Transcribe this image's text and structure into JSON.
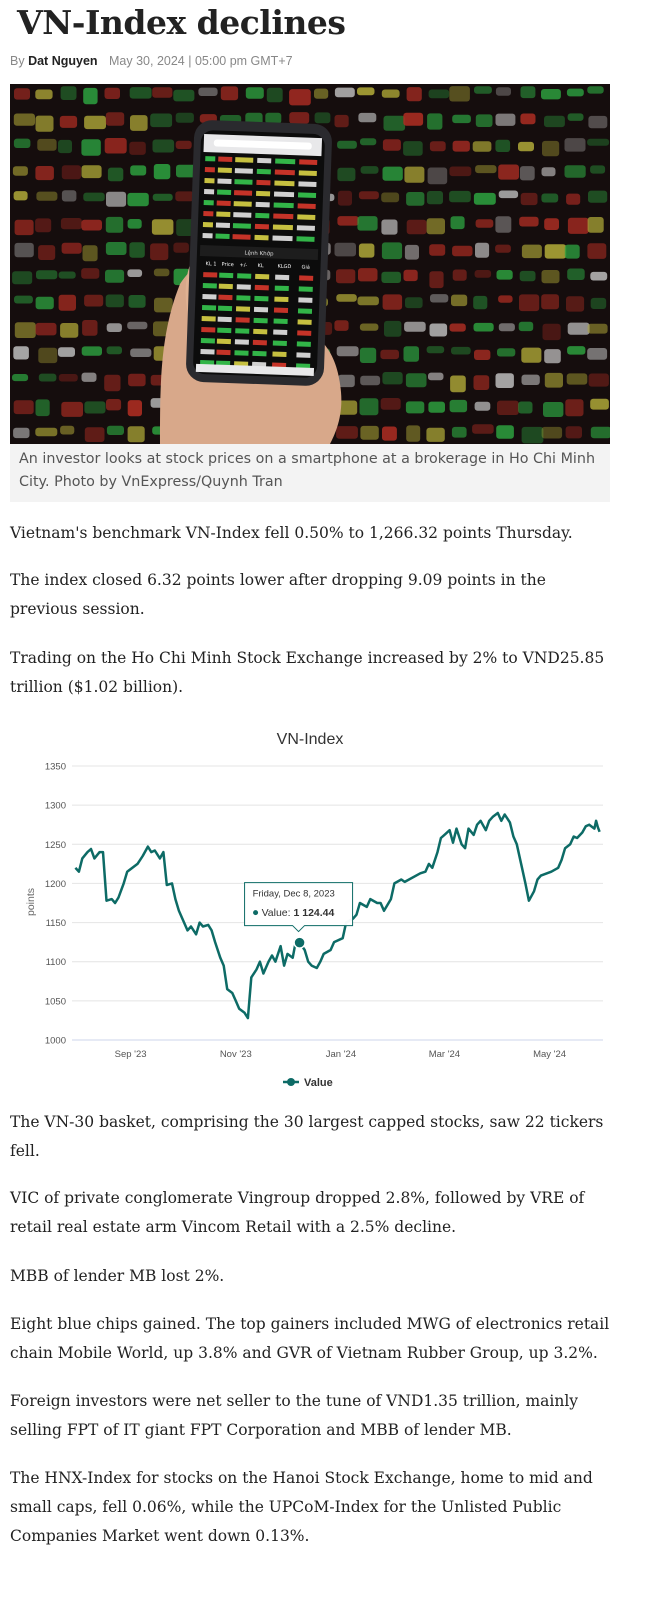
{
  "article": {
    "title": "VN-Index declines",
    "by": "By",
    "author": "Dat Nguyen",
    "date": "May 30, 2024 | 05:00 pm GMT+7",
    "photo": {
      "caption": "An investor looks at stock prices on a smartphone at a brokerage in Ho Chi Minh City. Photo by VnExpress/Quynh Tran",
      "phone_header": "Lệnh Khớp",
      "phone_columns": [
        "KL 1",
        "Price",
        "+/-",
        "KL",
        "KLGD",
        "Giá"
      ],
      "colors": {
        "red": "#e63b2e",
        "green": "#39d353",
        "yellow": "#e8e04a",
        "dark": "#1a1010"
      }
    },
    "paragraphs": [
      "Vietnam's benchmark VN-Index fell 0.50% to 1,266.32 points Thursday.",
      "The index closed 6.32 points lower after dropping 9.09 points in the previous session.",
      "Trading on the Ho Chi Minh Stock Exchange increased by 2% to VND25.85 trillion ($1.02 billion).",
      "The VN-30 basket, comprising the 30 largest capped stocks, saw 22 tickers fell.",
      "VIC of private conglomerate Vingroup dropped 2.8%, followed by VRE of retail real estate arm Vincom Retail with a 2.5% decline.",
      "MBB of lender MB lost 2%.",
      "Eight blue chips gained. The top gainers included MWG of electronics retail chain Mobile World, up 3.8% and GVR of Vietnam Rubber Group, up 3.2%.",
      "Foreign investors were net seller to the tune of VND1.35 trillion, mainly selling FPT of IT giant FPT Corporation and MBB of lender MB.",
      "The HNX-Index for stocks on the Hanoi Stock Exchange, home to mid and small caps, fell 0.06%, while the UPCoM-Index for the Unlisted Public Companies Market went down 0.13%."
    ]
  },
  "chart_data": {
    "type": "line",
    "title": "VN-Index",
    "ylabel": "points",
    "xlabel": "",
    "ylim": [
      1000,
      1350
    ],
    "yticks": [
      1000,
      1050,
      1100,
      1150,
      1200,
      1250,
      1300,
      1350
    ],
    "xticks": [
      {
        "label": "Sep '23",
        "date": "2023-09-01"
      },
      {
        "label": "Nov '23",
        "date": "2023-11-01"
      },
      {
        "label": "Jan '24",
        "date": "2024-01-01"
      },
      {
        "label": "Mar '24",
        "date": "2024-03-01"
      },
      {
        "label": "May '24",
        "date": "2024-05-01"
      }
    ],
    "grid": true,
    "legend": "bottom",
    "color": "#0d6b66",
    "series": [
      {
        "name": "Value",
        "points": [
          [
            "2023-07-31",
            1220
          ],
          [
            "2023-08-02",
            1215
          ],
          [
            "2023-08-04",
            1232
          ],
          [
            "2023-08-07",
            1240
          ],
          [
            "2023-08-09",
            1244
          ],
          [
            "2023-08-11",
            1232
          ],
          [
            "2023-08-14",
            1240
          ],
          [
            "2023-08-16",
            1240
          ],
          [
            "2023-08-18",
            1178
          ],
          [
            "2023-08-21",
            1180
          ],
          [
            "2023-08-23",
            1175
          ],
          [
            "2023-08-25",
            1182
          ],
          [
            "2023-08-28",
            1200
          ],
          [
            "2023-08-30",
            1215
          ],
          [
            "2023-09-05",
            1225
          ],
          [
            "2023-09-08",
            1235
          ],
          [
            "2023-09-11",
            1247
          ],
          [
            "2023-09-13",
            1240
          ],
          [
            "2023-09-15",
            1242
          ],
          [
            "2023-09-18",
            1232
          ],
          [
            "2023-09-20",
            1240
          ],
          [
            "2023-09-22",
            1198
          ],
          [
            "2023-09-25",
            1200
          ],
          [
            "2023-09-27",
            1180
          ],
          [
            "2023-09-29",
            1165
          ],
          [
            "2023-10-02",
            1150
          ],
          [
            "2023-10-04",
            1140
          ],
          [
            "2023-10-06",
            1145
          ],
          [
            "2023-10-09",
            1135
          ],
          [
            "2023-10-11",
            1150
          ],
          [
            "2023-10-13",
            1145
          ],
          [
            "2023-10-16",
            1147
          ],
          [
            "2023-10-18",
            1140
          ],
          [
            "2023-10-20",
            1125
          ],
          [
            "2023-10-23",
            1105
          ],
          [
            "2023-10-25",
            1095
          ],
          [
            "2023-10-27",
            1065
          ],
          [
            "2023-10-30",
            1060
          ],
          [
            "2023-11-01",
            1050
          ],
          [
            "2023-11-03",
            1040
          ],
          [
            "2023-11-06",
            1035
          ],
          [
            "2023-11-08",
            1028
          ],
          [
            "2023-11-10",
            1080
          ],
          [
            "2023-11-13",
            1090
          ],
          [
            "2023-11-15",
            1100
          ],
          [
            "2023-11-17",
            1085
          ],
          [
            "2023-11-20",
            1100
          ],
          [
            "2023-11-22",
            1108
          ],
          [
            "2023-11-24",
            1100
          ],
          [
            "2023-11-27",
            1120
          ],
          [
            "2023-11-29",
            1095
          ],
          [
            "2023-12-01",
            1110
          ],
          [
            "2023-12-04",
            1105
          ],
          [
            "2023-12-06",
            1128
          ],
          [
            "2023-12-08",
            1124.44
          ],
          [
            "2023-12-11",
            1115
          ],
          [
            "2023-12-13",
            1100
          ],
          [
            "2023-12-15",
            1095
          ],
          [
            "2023-12-18",
            1092
          ],
          [
            "2023-12-20",
            1100
          ],
          [
            "2023-12-22",
            1110
          ],
          [
            "2023-12-26",
            1115
          ],
          [
            "2023-12-28",
            1125
          ],
          [
            "2024-01-02",
            1130
          ],
          [
            "2024-01-04",
            1150
          ],
          [
            "2024-01-08",
            1155
          ],
          [
            "2024-01-10",
            1160
          ],
          [
            "2024-01-12",
            1175
          ],
          [
            "2024-01-16",
            1170
          ],
          [
            "2024-01-18",
            1180
          ],
          [
            "2024-01-22",
            1175
          ],
          [
            "2024-01-24",
            1175
          ],
          [
            "2024-01-26",
            1165
          ],
          [
            "2024-01-30",
            1180
          ],
          [
            "2024-02-01",
            1200
          ],
          [
            "2024-02-05",
            1205
          ],
          [
            "2024-02-07",
            1202
          ],
          [
            "2024-02-16",
            1213
          ],
          [
            "2024-02-19",
            1215
          ],
          [
            "2024-02-21",
            1225
          ],
          [
            "2024-02-23",
            1220
          ],
          [
            "2024-02-26",
            1240
          ],
          [
            "2024-02-28",
            1258
          ],
          [
            "2024-03-01",
            1262
          ],
          [
            "2024-03-04",
            1268
          ],
          [
            "2024-03-06",
            1252
          ],
          [
            "2024-03-08",
            1270
          ],
          [
            "2024-03-11",
            1250
          ],
          [
            "2024-03-13",
            1245
          ],
          [
            "2024-03-15",
            1270
          ],
          [
            "2024-03-18",
            1262
          ],
          [
            "2024-03-20",
            1275
          ],
          [
            "2024-03-22",
            1280
          ],
          [
            "2024-03-25",
            1268
          ],
          [
            "2024-03-27",
            1280
          ],
          [
            "2024-03-29",
            1285
          ],
          [
            "2024-04-01",
            1290
          ],
          [
            "2024-04-03",
            1280
          ],
          [
            "2024-04-05",
            1288
          ],
          [
            "2024-04-08",
            1278
          ],
          [
            "2024-04-10",
            1260
          ],
          [
            "2024-04-12",
            1250
          ],
          [
            "2024-04-15",
            1220
          ],
          [
            "2024-04-17",
            1200
          ],
          [
            "2024-04-19",
            1178
          ],
          [
            "2024-04-22",
            1190
          ],
          [
            "2024-04-24",
            1205
          ],
          [
            "2024-04-26",
            1210
          ],
          [
            "2024-05-02",
            1215
          ],
          [
            "2024-05-06",
            1220
          ],
          [
            "2024-05-08",
            1230
          ],
          [
            "2024-05-10",
            1245
          ],
          [
            "2024-05-13",
            1250
          ],
          [
            "2024-05-15",
            1260
          ],
          [
            "2024-05-17",
            1258
          ],
          [
            "2024-05-20",
            1265
          ],
          [
            "2024-05-22",
            1273
          ],
          [
            "2024-05-24",
            1275
          ],
          [
            "2024-05-27",
            1270
          ],
          [
            "2024-05-28",
            1280
          ],
          [
            "2024-05-29",
            1272
          ],
          [
            "2024-05-30",
            1266
          ]
        ]
      }
    ],
    "tooltip": {
      "date": "Friday, Dec 8, 2023",
      "label": "Value:",
      "value": "1 124.44",
      "x": "2023-12-08",
      "y": 1124.44
    }
  }
}
